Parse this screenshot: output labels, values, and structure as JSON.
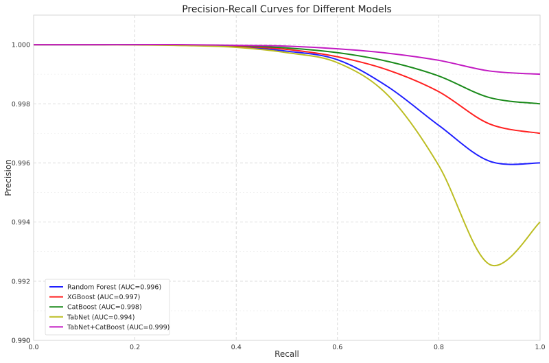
{
  "chart_data": {
    "type": "line",
    "title": "Precision-Recall Curves for Different Models",
    "xlabel": "Recall",
    "ylabel": "Precision",
    "xlim": [
      0.0,
      1.0
    ],
    "ylim": [
      0.99,
      1.001
    ],
    "xticks": [
      "0.0",
      "0.2",
      "0.4",
      "0.6",
      "0.8",
      "1.0"
    ],
    "yticks": [
      "0.990",
      "0.992",
      "0.994",
      "0.996",
      "0.998",
      "1.000"
    ],
    "grid": true,
    "legend_position": "lower-left",
    "series": [
      {
        "name": "Random Forest (AUC=0.996)",
        "color": "#1f1fff",
        "x": [
          0.0,
          0.1,
          0.2,
          0.3,
          0.4,
          0.5,
          0.6,
          0.7,
          0.8,
          0.9,
          1.0
        ],
        "y": [
          1.0,
          1.0,
          1.0,
          0.99999,
          0.99993,
          0.99978,
          0.99949,
          0.99857,
          0.99727,
          0.99606,
          0.996
        ]
      },
      {
        "name": "XGBoost (AUC=0.997)",
        "color": "#ff2020",
        "x": [
          0.0,
          0.1,
          0.2,
          0.3,
          0.4,
          0.5,
          0.6,
          0.7,
          0.8,
          0.9,
          1.0
        ],
        "y": [
          1.0,
          1.0,
          1.0,
          0.99999,
          0.99995,
          0.99984,
          0.99959,
          0.99914,
          0.99841,
          0.99732,
          0.997
        ]
      },
      {
        "name": "CatBoost (AUC=0.998)",
        "color": "#1a8a1a",
        "x": [
          0.0,
          0.1,
          0.2,
          0.3,
          0.4,
          0.5,
          0.6,
          0.7,
          0.8,
          0.9,
          1.0
        ],
        "y": [
          1.0,
          1.0,
          1.0,
          0.99999,
          0.99997,
          0.99989,
          0.99973,
          0.99943,
          0.99894,
          0.99821,
          0.998
        ]
      },
      {
        "name": "TabNet (AUC=0.994)",
        "color": "#bcbd22",
        "x": [
          0.0,
          0.1,
          0.2,
          0.3,
          0.4,
          0.5,
          0.6,
          0.7,
          0.8,
          0.9,
          1.0
        ],
        "y": [
          1.0,
          1.0,
          0.99999,
          0.99997,
          0.99991,
          0.99973,
          0.99939,
          0.99828,
          0.99591,
          0.99257,
          0.994
        ]
      },
      {
        "name": "TabNet+CatBoost (AUC=0.999)",
        "color": "#c21ac2",
        "x": [
          0.0,
          0.1,
          0.2,
          0.3,
          0.4,
          0.5,
          0.6,
          0.7,
          0.8,
          0.9,
          1.0
        ],
        "y": [
          1.0,
          1.0,
          1.0,
          1.0,
          0.99998,
          0.99995,
          0.99986,
          0.99971,
          0.99947,
          0.99911,
          0.999
        ]
      }
    ]
  }
}
